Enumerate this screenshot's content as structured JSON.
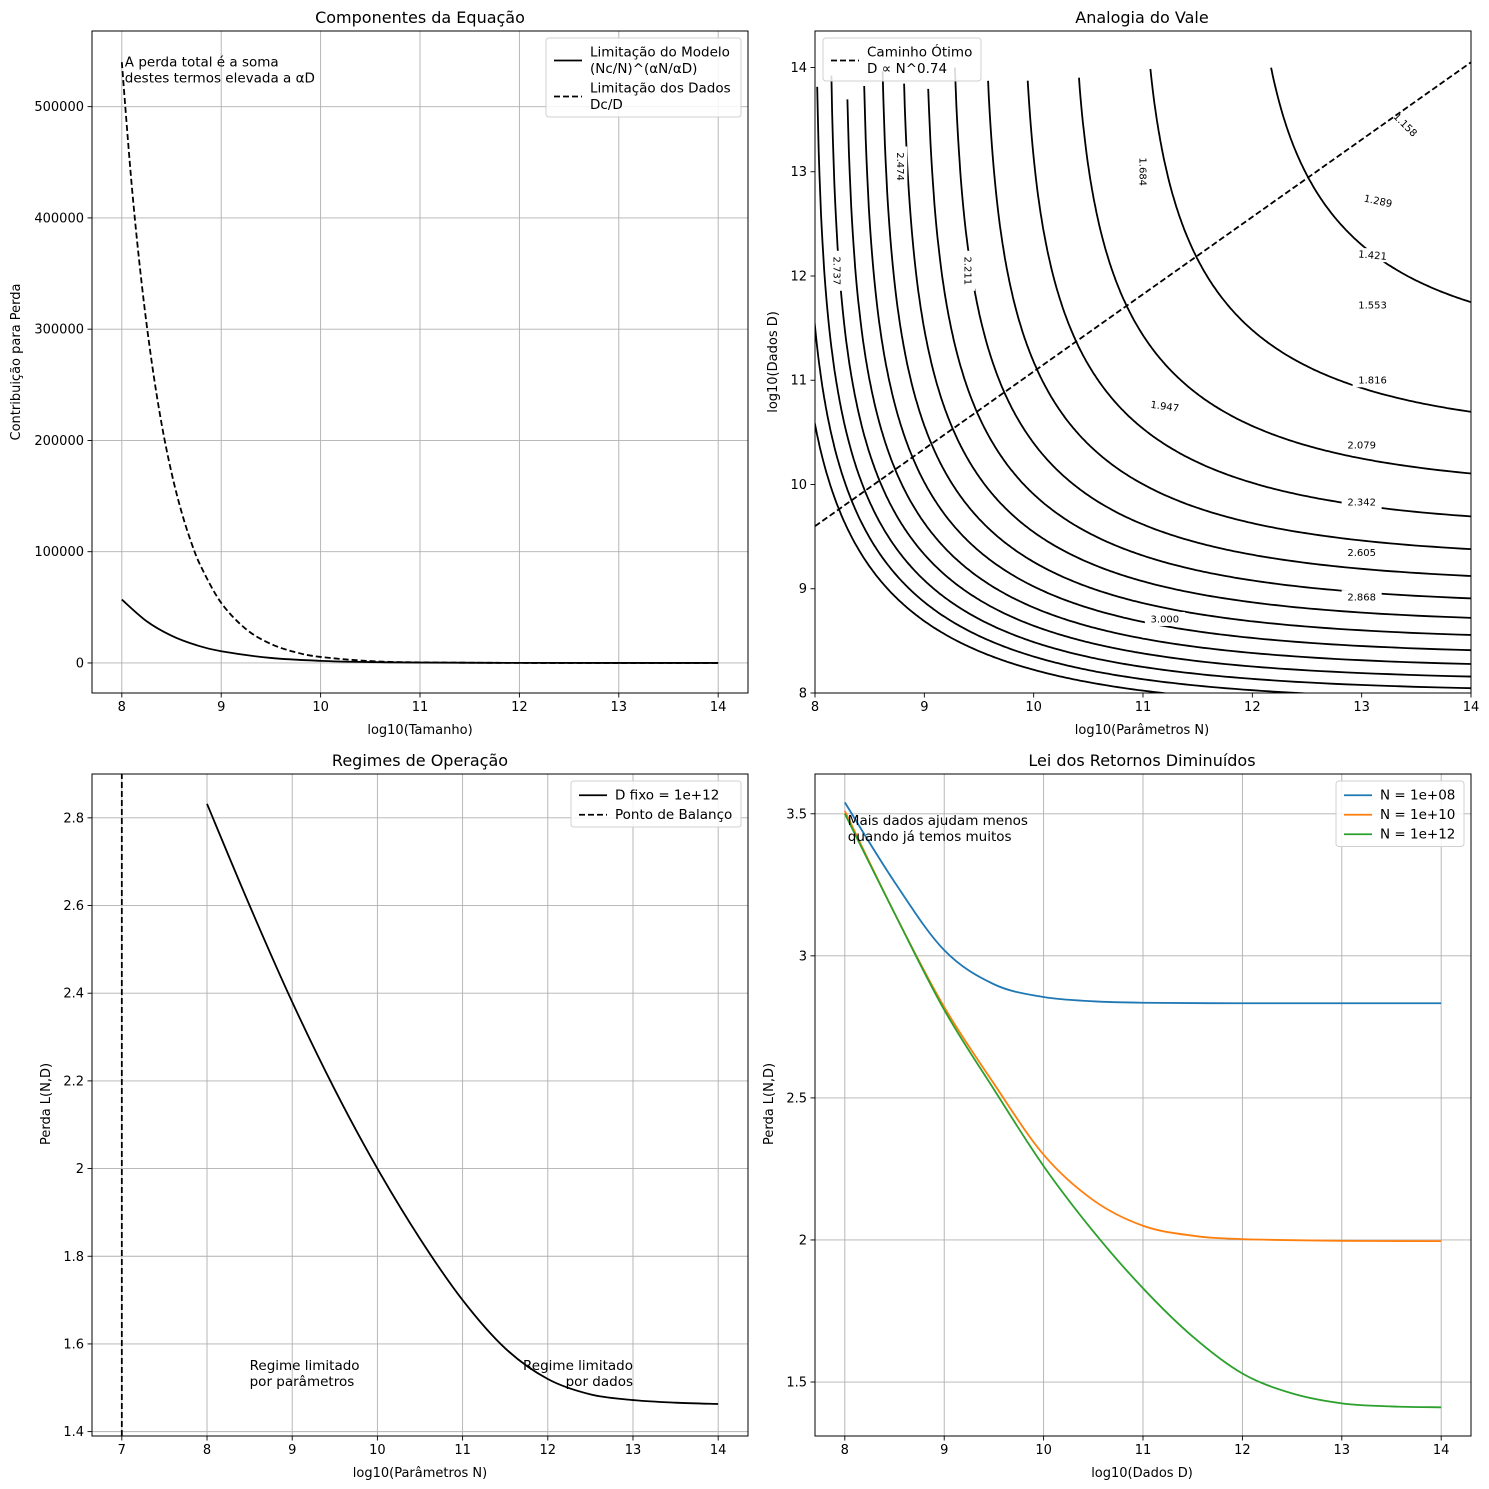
{
  "figure": {
    "background": "#ffffff"
  },
  "chart_data": [
    {
      "id": "components",
      "type": "line",
      "title": "Componentes da Equação",
      "xlabel": "log10(Tamanho)",
      "ylabel": "Contribuição para Perda",
      "xlim": [
        7.7,
        14.3
      ],
      "ylim": [
        -27000,
        568000
      ],
      "xticks": [
        8,
        9,
        10,
        11,
        12,
        13,
        14
      ],
      "yticks": [
        0,
        100000,
        200000,
        300000,
        400000,
        500000
      ],
      "grid": true,
      "legend": "top-right",
      "series": [
        {
          "name": "Limitação do Modelo\n(Nc/N)^(αN/αD)",
          "style": "solid",
          "color": "#000000",
          "x": [
            8,
            8.25,
            8.5,
            8.75,
            9,
            9.5,
            10,
            10.5,
            11,
            12,
            13,
            14
          ],
          "values": [
            57000,
            37500,
            24500,
            16000,
            10500,
            4500,
            1900,
            800,
            350,
            60,
            10,
            2
          ]
        },
        {
          "name": "Limitação dos Dados\nDc/D",
          "style": "dashed",
          "color": "#000000",
          "x": [
            8,
            8.1,
            8.2,
            8.3,
            8.4,
            8.5,
            8.6,
            8.7,
            8.8,
            9,
            9.25,
            9.5,
            9.75,
            10,
            10.5,
            11,
            12,
            13,
            14
          ],
          "values": [
            540000,
            429000,
            341000,
            271000,
            215000,
            171000,
            136000,
            108000,
            86000,
            54000,
            30400,
            17100,
            9600,
            5400,
            1700,
            540,
            54,
            5,
            0.5
          ]
        }
      ],
      "annotations": [
        {
          "text": "A perda total é a soma\ndestes termos elevada a αD",
          "x": 8.03,
          "y": 530000
        }
      ]
    },
    {
      "id": "valley",
      "type": "contour",
      "title": "Analogia do Vale",
      "xlabel": "log10(Parâmetros N)",
      "ylabel": "log10(Dados D)",
      "xlim": [
        8,
        14
      ],
      "ylim": [
        8,
        14.35
      ],
      "xticks": [
        8,
        9,
        10,
        11,
        12,
        13,
        14
      ],
      "yticks": [
        8,
        9,
        10,
        11,
        12,
        13,
        14
      ],
      "grid": false,
      "legend": "top-left",
      "levels": [
        1.158,
        1.289,
        1.421,
        1.553,
        1.684,
        1.816,
        1.947,
        2.079,
        2.211,
        2.342,
        2.474,
        2.605,
        2.737,
        2.868,
        3.0
      ],
      "level_labels": [
        {
          "text": "1.158",
          "x": 13.4,
          "y": 13.45,
          "angle": 45
        },
        {
          "text": "1.289",
          "x": 13.15,
          "y": 12.72,
          "angle": 12
        },
        {
          "text": "1.421",
          "x": 13.1,
          "y": 12.2,
          "angle": 5
        },
        {
          "text": "1.553",
          "x": 13.1,
          "y": 11.72,
          "angle": 0
        },
        {
          "text": "1.684",
          "x": 11.0,
          "y": 13.0,
          "angle": 90
        },
        {
          "text": "1.816",
          "x": 13.1,
          "y": 11.0,
          "angle": 0
        },
        {
          "text": "1.947",
          "x": 11.2,
          "y": 10.75,
          "angle": 8
        },
        {
          "text": "2.079",
          "x": 13.0,
          "y": 10.38,
          "angle": 0
        },
        {
          "text": "2.211",
          "x": 9.4,
          "y": 12.05,
          "angle": 90
        },
        {
          "text": "2.342",
          "x": 13.0,
          "y": 9.83,
          "angle": 0
        },
        {
          "text": "2.474",
          "x": 8.78,
          "y": 13.05,
          "angle": 90
        },
        {
          "text": "2.605",
          "x": 13.0,
          "y": 9.35,
          "angle": 0
        },
        {
          "text": "2.737",
          "x": 8.2,
          "y": 12.05,
          "angle": 90
        },
        {
          "text": "2.868",
          "x": 13.0,
          "y": 8.92,
          "angle": 0
        },
        {
          "text": "3.000",
          "x": 11.2,
          "y": 8.71,
          "angle": 0
        }
      ],
      "series": [
        {
          "name": "Caminho Ótimo\nD ∝ N^0.74",
          "style": "dashed",
          "color": "#000000",
          "x": [
            8,
            14
          ],
          "values": [
            9.6,
            14.05
          ]
        }
      ]
    },
    {
      "id": "regimes",
      "type": "line",
      "title": "Regimes de Operação",
      "xlabel": "log10(Parâmetros N)",
      "ylabel": "Perda L(N,D)",
      "xlim": [
        6.65,
        14.35
      ],
      "ylim": [
        1.39,
        2.9
      ],
      "xticks": [
        7,
        8,
        9,
        10,
        11,
        12,
        13,
        14
      ],
      "yticks": [
        1.4,
        1.6,
        1.8,
        2.0,
        2.2,
        2.4,
        2.6,
        2.8
      ],
      "grid": true,
      "legend": "top-right",
      "series": [
        {
          "name": "D fixo = 1e+12",
          "style": "solid",
          "color": "#000000",
          "x": [
            8,
            8.5,
            9,
            9.5,
            10,
            10.5,
            11,
            11.5,
            12,
            12.5,
            13,
            13.5,
            14
          ],
          "values": [
            2.832,
            2.6,
            2.38,
            2.18,
            2.0,
            1.84,
            1.7,
            1.59,
            1.52,
            1.485,
            1.472,
            1.466,
            1.463
          ]
        },
        {
          "name": "Ponto de Balanço",
          "style": "dashed",
          "color": "#000000",
          "x": [
            7.0,
            7.0
          ],
          "values": [
            1.39,
            2.9
          ]
        }
      ],
      "annotations": [
        {
          "text": "Regime limitado\npor parâmetros",
          "x": 8.5,
          "y": 1.52,
          "align": "left"
        },
        {
          "text": "Regime limitado\npor dados",
          "x": 13.0,
          "y": 1.52,
          "align": "right"
        }
      ]
    },
    {
      "id": "diminishing",
      "type": "line",
      "title": "Lei dos Retornos Diminuídos",
      "xlabel": "log10(Dados D)",
      "ylabel": "Perda L(N,D)",
      "xlim": [
        7.7,
        14.3
      ],
      "ylim": [
        1.31,
        3.64
      ],
      "xticks": [
        8,
        9,
        10,
        11,
        12,
        13,
        14
      ],
      "yticks": [
        1.5,
        2.0,
        2.5,
        3.0,
        3.5
      ],
      "grid": true,
      "legend": "top-right",
      "series": [
        {
          "name": "N = 1e+08",
          "color": "#1f77b4",
          "x": [
            8,
            8.5,
            9,
            9.5,
            10,
            10.5,
            11,
            12,
            13,
            14
          ],
          "values": [
            3.54,
            3.26,
            3.02,
            2.9,
            2.855,
            2.84,
            2.835,
            2.833,
            2.833,
            2.833
          ]
        },
        {
          "name": "N = 1e+10",
          "color": "#ff7f0e",
          "x": [
            8,
            8.5,
            9,
            9.5,
            10,
            10.5,
            11,
            11.5,
            12,
            13,
            14
          ],
          "values": [
            3.51,
            3.15,
            2.82,
            2.55,
            2.3,
            2.14,
            2.05,
            2.015,
            2.003,
            1.997,
            1.996
          ]
        },
        {
          "name": "N = 1e+12",
          "color": "#2ca02c",
          "x": [
            8,
            8.5,
            9,
            9.5,
            10,
            10.5,
            11,
            11.5,
            12,
            12.5,
            13,
            13.5,
            14
          ],
          "values": [
            3.5,
            3.15,
            2.81,
            2.53,
            2.26,
            2.03,
            1.83,
            1.66,
            1.53,
            1.46,
            1.425,
            1.414,
            1.411
          ]
        }
      ],
      "annotations": [
        {
          "text": "Mais dados ajudam menos\nquando já temos muitos",
          "x": 8.03,
          "y": 3.46
        }
      ]
    }
  ]
}
